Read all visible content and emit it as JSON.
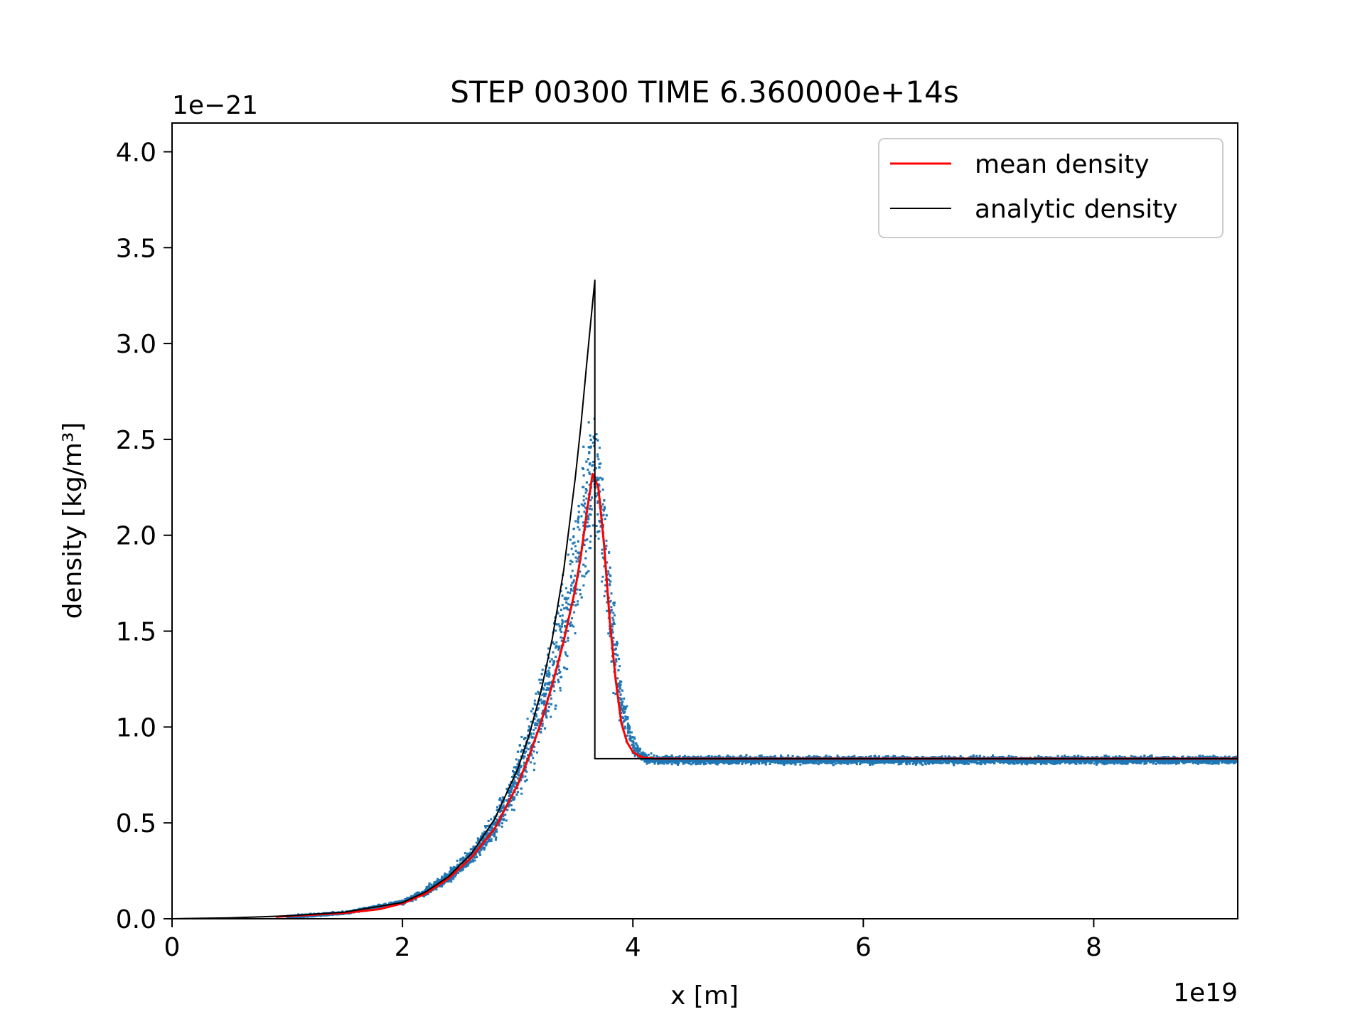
{
  "chart_data": {
    "type": "line",
    "title": "STEP 00300 TIME 6.360000e+14s",
    "xlabel": "x [m]",
    "ylabel": "density [kg/m³]",
    "x_offset_label": "1e19",
    "y_offset_label": "1e−21",
    "xlim": [
      0,
      9.25
    ],
    "ylim": [
      0,
      4.15
    ],
    "x_ticks": [
      0,
      2,
      4,
      6,
      8
    ],
    "x_tick_labels": [
      "0",
      "2",
      "4",
      "6",
      "8"
    ],
    "y_ticks": [
      0,
      0.5,
      1.0,
      1.5,
      2.0,
      2.5,
      3.0,
      3.5,
      4.0
    ],
    "y_tick_labels": [
      "0.0",
      "0.5",
      "1.0",
      "1.5",
      "2.0",
      "2.5",
      "3.0",
      "3.5",
      "4.0"
    ],
    "grid": false,
    "legend": {
      "placement": "top-right"
    },
    "series": [
      {
        "name": "mean density",
        "color": "#ff0000",
        "x": [
          0.9,
          1.2,
          1.5,
          1.8,
          2.0,
          2.2,
          2.4,
          2.6,
          2.8,
          3.0,
          3.1,
          3.2,
          3.3,
          3.4,
          3.5,
          3.55,
          3.6,
          3.65,
          3.7,
          3.75,
          3.8,
          3.85,
          3.9,
          3.95,
          4.0,
          4.05,
          4.1,
          4.2,
          5.0,
          6.0,
          7.0,
          8.0,
          9.25
        ],
        "y": [
          0.01,
          0.02,
          0.03,
          0.05,
          0.08,
          0.13,
          0.21,
          0.32,
          0.47,
          0.7,
          0.85,
          1.02,
          1.22,
          1.45,
          1.72,
          1.9,
          2.12,
          2.32,
          2.25,
          1.95,
          1.55,
          1.25,
          1.02,
          0.92,
          0.87,
          0.85,
          0.84,
          0.835,
          0.835,
          0.835,
          0.835,
          0.835,
          0.835
        ]
      },
      {
        "name": "analytic density",
        "color": "#000000",
        "x": [
          0,
          0.5,
          1.0,
          1.5,
          2.0,
          2.2,
          2.4,
          2.6,
          2.8,
          3.0,
          3.1,
          3.2,
          3.3,
          3.4,
          3.5,
          3.55,
          3.6,
          3.64,
          3.67,
          3.67,
          9.25
        ],
        "y": [
          0,
          0.005,
          0.015,
          0.035,
          0.085,
          0.14,
          0.22,
          0.34,
          0.52,
          0.78,
          0.96,
          1.18,
          1.46,
          1.82,
          2.3,
          2.58,
          2.9,
          3.15,
          3.33,
          0.835,
          0.835
        ]
      }
    ],
    "scatter": {
      "color": "#1f77b4",
      "description_envelope": {
        "x": [
          1.0,
          1.5,
          2.0,
          2.2,
          2.4,
          2.6,
          2.8,
          3.0,
          3.2,
          3.4,
          3.5,
          3.6,
          3.65,
          3.7,
          3.75,
          3.8,
          3.9,
          4.0,
          4.1,
          4.3,
          9.25
        ],
        "upper": [
          0.02,
          0.04,
          0.1,
          0.17,
          0.26,
          0.4,
          0.58,
          0.92,
          1.32,
          1.9,
          2.3,
          2.75,
          2.9,
          2.75,
          2.4,
          1.95,
          1.3,
          0.97,
          0.87,
          0.855,
          0.855
        ],
        "lower": [
          0.0,
          0.02,
          0.07,
          0.11,
          0.17,
          0.26,
          0.38,
          0.56,
          0.8,
          1.12,
          1.35,
          1.6,
          1.75,
          1.78,
          1.6,
          1.25,
          0.95,
          0.84,
          0.8,
          0.8,
          0.8
        ]
      }
    }
  }
}
